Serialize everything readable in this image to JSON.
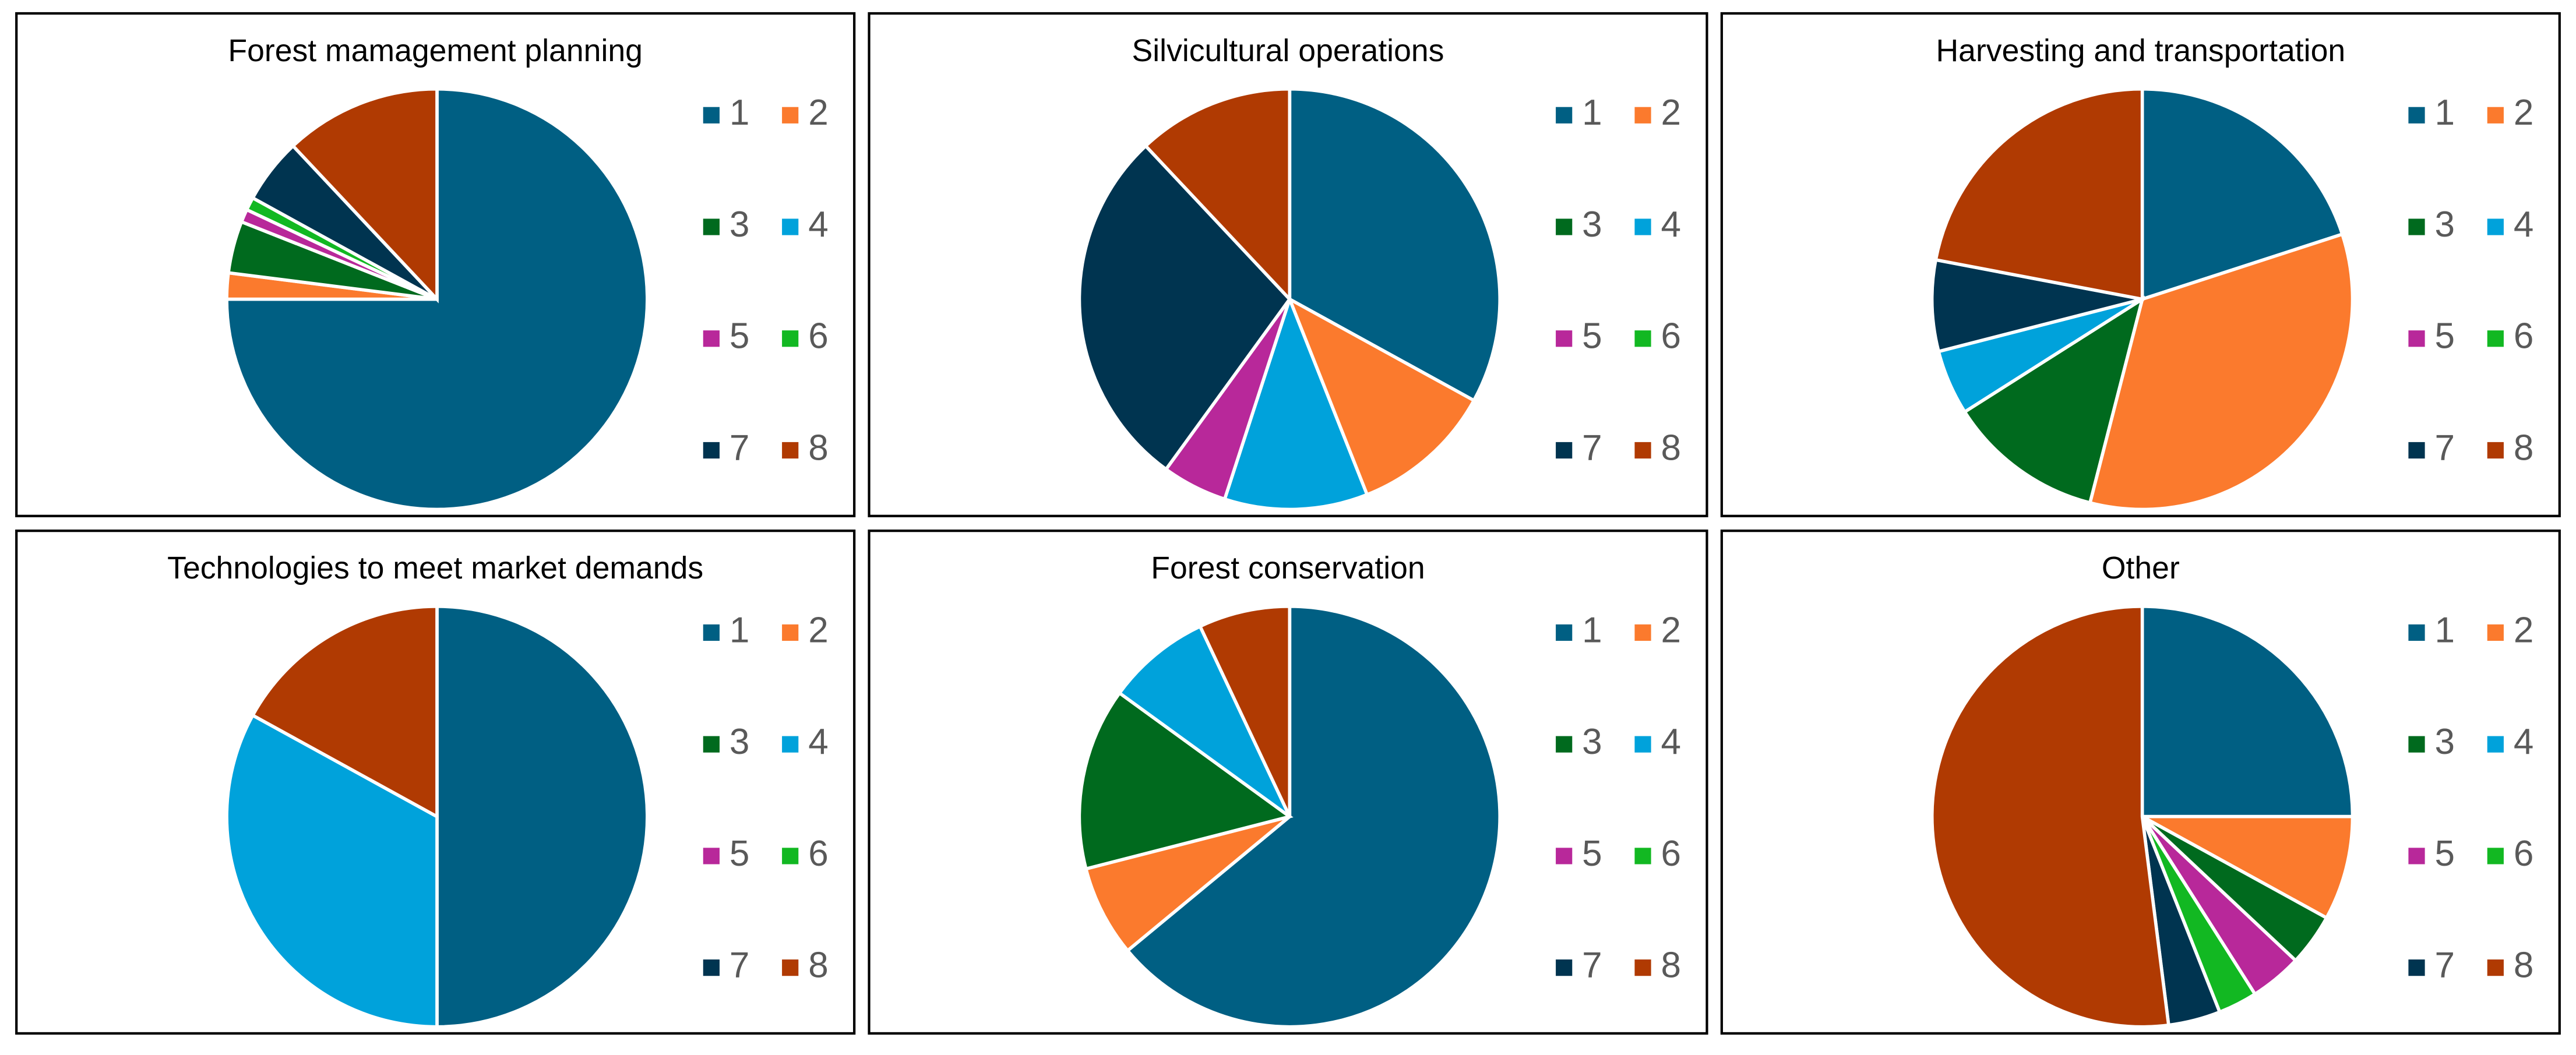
{
  "chart_data": [
    {
      "type": "pie",
      "title": "Forest mamagement planning",
      "categories": [
        "1",
        "2",
        "3",
        "4",
        "5",
        "6",
        "7",
        "8"
      ],
      "values": [
        75,
        2,
        4,
        0,
        1,
        1,
        5,
        12
      ],
      "colors": [
        "#005f83",
        "#fb7a2d",
        "#006a1e",
        "#00a2db",
        "#b8289a",
        "#12b822",
        "#003450",
        "#b03a02"
      ]
    },
    {
      "type": "pie",
      "title": "Silvicultural operations",
      "categories": [
        "1",
        "2",
        "3",
        "4",
        "5",
        "6",
        "7",
        "8"
      ],
      "values": [
        33,
        11,
        0,
        11,
        5,
        0,
        28,
        12
      ],
      "colors": [
        "#005f83",
        "#fb7a2d",
        "#006a1e",
        "#00a2db",
        "#b8289a",
        "#12b822",
        "#003450",
        "#b03a02"
      ]
    },
    {
      "type": "pie",
      "title": "Harvesting and transportation",
      "categories": [
        "1",
        "2",
        "3",
        "4",
        "5",
        "6",
        "7",
        "8"
      ],
      "values": [
        20,
        34,
        12,
        5,
        0,
        0,
        7,
        22
      ],
      "colors": [
        "#005f83",
        "#fb7a2d",
        "#006a1e",
        "#00a2db",
        "#b8289a",
        "#12b822",
        "#003450",
        "#b03a02"
      ]
    },
    {
      "type": "pie",
      "title": "Technologies to meet market demands",
      "categories": [
        "1",
        "2",
        "3",
        "4",
        "5",
        "6",
        "7",
        "8"
      ],
      "values": [
        50,
        0,
        0,
        33,
        0,
        0,
        0,
        17
      ],
      "colors": [
        "#005f83",
        "#fb7a2d",
        "#006a1e",
        "#00a2db",
        "#b8289a",
        "#12b822",
        "#003450",
        "#b03a02"
      ]
    },
    {
      "type": "pie",
      "title": "Forest conservation",
      "categories": [
        "1",
        "2",
        "3",
        "4",
        "5",
        "6",
        "7",
        "8"
      ],
      "values": [
        64,
        7,
        14,
        8,
        0,
        0,
        0,
        7
      ],
      "colors": [
        "#005f83",
        "#fb7a2d",
        "#006a1e",
        "#00a2db",
        "#b8289a",
        "#12b822",
        "#003450",
        "#b03a02"
      ]
    },
    {
      "type": "pie",
      "title": "Other",
      "categories": [
        "1",
        "2",
        "3",
        "4",
        "5",
        "6",
        "7",
        "8"
      ],
      "values": [
        25,
        8,
        4,
        0,
        4,
        3,
        4,
        52
      ],
      "colors": [
        "#005f83",
        "#fb7a2d",
        "#006a1e",
        "#00a2db",
        "#b8289a",
        "#12b822",
        "#003450",
        "#b03a02"
      ]
    }
  ]
}
